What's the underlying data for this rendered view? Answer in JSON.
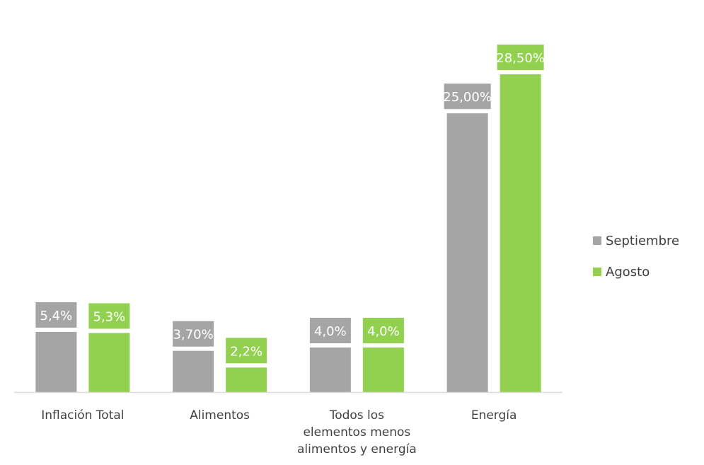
{
  "chart_data": {
    "type": "bar",
    "categories": [
      [
        "Inflación Total"
      ],
      [
        "Alimentos"
      ],
      [
        "Todos los",
        "elementos menos",
        "alimentos y energía"
      ],
      [
        "Energía"
      ]
    ],
    "series": [
      {
        "name": "Septiembre",
        "color": "#a5a5a5",
        "values": [
          5.4,
          3.7,
          4.0,
          25.0
        ],
        "labels": [
          "5,4%",
          "3,70%",
          "4,0%",
          "25,00%"
        ]
      },
      {
        "name": "Agosto",
        "color": "#92d050",
        "values": [
          5.3,
          2.2,
          4.0,
          28.5
        ],
        "labels": [
          "5,3%",
          "2,2%",
          "4,0%",
          "28,50%"
        ]
      }
    ],
    "ylim": [
      0,
      28.5
    ],
    "grid": false,
    "legend_position": "right"
  }
}
